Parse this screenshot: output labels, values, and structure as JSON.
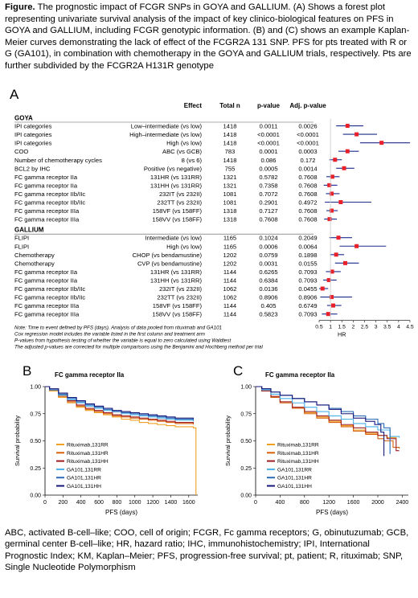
{
  "caption": {
    "label": "Figure.",
    "text": "The prognostic impact of FCGR SNPs in GOYA and GALLIUM. (A) Shows a forest plot representing univariate survival analysis of the impact of key clinico-biological features on PFS in GOYA and GALLIUM, including FCGR genotypic information. (B) and (C) shows an example Kaplan-Meier curves demonstrating the lack of effect of the FCGR2A 131 SNP. PFS for pts treated with R or G (GA101), in combination with chemotherapy in the GOYA and GALLIUM trials, respectively. Pts are further subdivided by the FCGR2A H131R genotype"
  },
  "chart_data": [
    {
      "type": "forest",
      "panel_label": "A",
      "columns": [
        "Effect",
        "Total n",
        "p-value",
        "Adj. p-value"
      ],
      "groups": [
        {
          "name": "GOYA",
          "rows": [
            {
              "label": "IPI categories",
              "effect": "Low–intermediate (vs low)",
              "n": "1418",
              "p": "0.0011",
              "adj_p": "0.0026",
              "hr": 1.75,
              "lo": 1.25,
              "hi": 2.45
            },
            {
              "label": "IPI categories",
              "effect": "High–intermediate (vs low)",
              "n": "1418",
              "p": "<0.0001",
              "adj_p": "<0.0001",
              "hr": 2.15,
              "lo": 1.55,
              "hi": 3.05
            },
            {
              "label": "IPI categories",
              "effect": "High (vs low)",
              "n": "1418",
              "p": "<0.0001",
              "adj_p": "<0.0001",
              "hr": 3.25,
              "lo": 2.3,
              "hi": 4.5
            },
            {
              "label": "COO",
              "effect": "ABC (vs GCB)",
              "n": "783",
              "p": "0.0001",
              "adj_p": "0.0003",
              "hr": 1.75,
              "lo": 1.35,
              "hi": 2.25
            },
            {
              "label": "Number of chemotherapy cycles",
              "effect": "8 (vs 6)",
              "n": "1418",
              "p": "0.086",
              "adj_p": "0.172",
              "hr": 1.2,
              "lo": 0.95,
              "hi": 1.5
            },
            {
              "label": "BCL2 by IHC",
              "effect": "Positive (vs negative)",
              "n": "755",
              "p": "0.0005",
              "adj_p": "0.0014",
              "hr": 1.6,
              "lo": 1.25,
              "hi": 2.05
            },
            {
              "label": "FC gamma receptor IIa",
              "effect": "131HR (vs 131RR)",
              "n": "1321",
              "p": "0.5782",
              "adj_p": "0.7608",
              "hr": 1.08,
              "lo": 0.82,
              "hi": 1.4
            },
            {
              "label": "FC gamma receptor IIa",
              "effect": "131HH (vs 131RR)",
              "n": "1321",
              "p": "0.7358",
              "adj_p": "0.7608",
              "hr": 0.95,
              "lo": 0.7,
              "hi": 1.3
            },
            {
              "label": "FC gamma receptor IIb/IIc",
              "effect": "232IT (vs 232II)",
              "n": "1081",
              "p": "0.7072",
              "adj_p": "0.7608",
              "hr": 1.05,
              "lo": 0.8,
              "hi": 1.4
            },
            {
              "label": "FC gamma receptor IIb/IIc",
              "effect": "232TT (vs 232II)",
              "n": "1081",
              "p": "0.2901",
              "adj_p": "0.4972",
              "hr": 1.45,
              "lo": 0.75,
              "hi": 2.8
            },
            {
              "label": "FC gamma receptor IIIa",
              "effect": "158VF (vs 158FF)",
              "n": "1318",
              "p": "0.7127",
              "adj_p": "0.7608",
              "hr": 1.05,
              "lo": 0.82,
              "hi": 1.32
            },
            {
              "label": "FC gamma receptor IIIa",
              "effect": "158VV (vs 158FF)",
              "n": "1318",
              "p": "0.7608",
              "adj_p": "0.7608",
              "hr": 0.96,
              "lo": 0.72,
              "hi": 1.28
            }
          ]
        },
        {
          "name": "GALLIUM",
          "rows": [
            {
              "label": "FLIPI",
              "effect": "Intermediate (vs low)",
              "n": "1165",
              "p": "0.1024",
              "adj_p": "0.2049",
              "hr": 1.35,
              "lo": 0.95,
              "hi": 1.95
            },
            {
              "label": "FLIPI",
              "effect": "High (vs low)",
              "n": "1165",
              "p": "0.0006",
              "adj_p": "0.0064",
              "hr": 2.15,
              "lo": 1.4,
              "hi": 3.45
            },
            {
              "label": "Chemotherapy",
              "effect": "CHOP (vs bendamustine)",
              "n": "1202",
              "p": "0.0759",
              "adj_p": "0.1898",
              "hr": 1.25,
              "lo": 0.98,
              "hi": 1.6
            },
            {
              "label": "Chemotherapy",
              "effect": "CVP (vs bendamustine)",
              "n": "1202",
              "p": "0.0031",
              "adj_p": "0.0155",
              "hr": 1.65,
              "lo": 1.2,
              "hi": 2.25
            },
            {
              "label": "FC gamma receptor IIa",
              "effect": "131HR (vs 131RR)",
              "n": "1144",
              "p": "0.6265",
              "adj_p": "0.7093",
              "hr": 1.07,
              "lo": 0.8,
              "hi": 1.45
            },
            {
              "label": "FC gamma receptor IIa",
              "effect": "131HH (vs 131RR)",
              "n": "1144",
              "p": "0.6384",
              "adj_p": "0.7093",
              "hr": 0.93,
              "lo": 0.68,
              "hi": 1.27
            },
            {
              "label": "FC gamma receptor IIb/IIc",
              "effect": "232IT (vs 232II)",
              "n": "1062",
              "p": "0.0136",
              "adj_p": "0.0455",
              "hr": 0.65,
              "lo": 0.47,
              "hi": 0.9
            },
            {
              "label": "FC gamma receptor IIb/IIc",
              "effect": "232TT (vs 232II)",
              "n": "1062",
              "p": "0.8906",
              "adj_p": "0.8906",
              "hr": 1.05,
              "lo": 0.55,
              "hi": 1.95
            },
            {
              "label": "FC gamma receptor IIIa",
              "effect": "158VF (vs 158FF)",
              "n": "1144",
              "p": "0.405",
              "adj_p": "0.6749",
              "hr": 1.12,
              "lo": 0.85,
              "hi": 1.48
            },
            {
              "label": "FC gamma receptor IIIa",
              "effect": "158VV (vs 158FF)",
              "n": "1144",
              "p": "0.5823",
              "adj_p": "0.7093",
              "hr": 0.9,
              "lo": 0.62,
              "hi": 1.3
            }
          ]
        }
      ],
      "xlabel": "HR",
      "xlim": [
        0.5,
        4.5
      ],
      "xticks": [
        0.5,
        1,
        1.5,
        2,
        2.5,
        3,
        3.5,
        4,
        4.5
      ],
      "reference_line": 1,
      "notes": [
        "Note: Time to event defined by PFS (days). Analysis of data pooled from rituximab and GA101",
        "Cox regression model includes the variable listed in the first column and treatment arm",
        "P-values from hypothesis testing of whether the variable is equal to zero calculated using Waldtest",
        "The adjusted p-values are corrected for multiple comparisons using the Benjamini and Hochberg method per trial"
      ],
      "colors": {
        "point": "#e8202a",
        "ci": "#1c2d8c",
        "ref": "#c8c8c8"
      }
    },
    {
      "type": "line",
      "panel_label": "B",
      "title": "FC gamma receptor IIa",
      "xlabel": "PFS (days)",
      "ylabel": "Survival probability",
      "xlim": [
        0,
        1700
      ],
      "ylim": [
        0.0,
        1.0
      ],
      "xticks": [
        0,
        200,
        400,
        600,
        800,
        1000,
        1200,
        1400,
        1600
      ],
      "yticks": [
        "0.00",
        "0.25",
        "0.50",
        "0.75",
        "1.00"
      ],
      "series": [
        {
          "name": "Rituximab,131RR",
          "color": "#f0a020",
          "x": [
            0,
            50,
            150,
            250,
            350,
            450,
            550,
            650,
            750,
            850,
            950,
            1050,
            1150,
            1250,
            1350,
            1450,
            1550,
            1650,
            1680
          ],
          "y": [
            1.0,
            0.96,
            0.9,
            0.85,
            0.81,
            0.78,
            0.76,
            0.74,
            0.72,
            0.7,
            0.69,
            0.67,
            0.66,
            0.65,
            0.64,
            0.63,
            0.63,
            0.62,
            0.0
          ]
        },
        {
          "name": "Rituximab,131HR",
          "color": "#d8600a",
          "x": [
            0,
            50,
            150,
            250,
            350,
            450,
            550,
            650,
            750,
            850,
            950,
            1050,
            1150,
            1250,
            1350,
            1450,
            1550,
            1650
          ],
          "y": [
            1.0,
            0.97,
            0.91,
            0.86,
            0.82,
            0.79,
            0.77,
            0.75,
            0.73,
            0.72,
            0.71,
            0.7,
            0.69,
            0.68,
            0.67,
            0.66,
            0.66,
            0.65
          ]
        },
        {
          "name": "Rituximab,131HH",
          "color": "#9c1c22",
          "x": [
            0,
            50,
            150,
            250,
            350,
            450,
            550,
            650,
            750,
            850,
            950,
            1050,
            1150,
            1250,
            1350,
            1450,
            1550,
            1650
          ],
          "y": [
            1.0,
            0.97,
            0.92,
            0.87,
            0.83,
            0.8,
            0.78,
            0.76,
            0.74,
            0.73,
            0.72,
            0.71,
            0.7,
            0.69,
            0.68,
            0.67,
            0.67,
            0.66
          ]
        },
        {
          "name": "GA101,131RR",
          "color": "#4ab0e8",
          "x": [
            0,
            50,
            150,
            250,
            350,
            450,
            550,
            650,
            750,
            850,
            950,
            1050,
            1150,
            1250,
            1350,
            1450,
            1550,
            1650
          ],
          "y": [
            1.0,
            0.97,
            0.92,
            0.88,
            0.85,
            0.82,
            0.8,
            0.78,
            0.77,
            0.75,
            0.74,
            0.73,
            0.72,
            0.71,
            0.7,
            0.69,
            0.69,
            0.68
          ]
        },
        {
          "name": "GA101,131HR",
          "color": "#2a6cb8",
          "x": [
            0,
            50,
            150,
            250,
            350,
            450,
            550,
            650,
            750,
            850,
            950,
            1050,
            1150,
            1250,
            1350,
            1450,
            1550,
            1650
          ],
          "y": [
            1.0,
            0.97,
            0.93,
            0.89,
            0.86,
            0.83,
            0.81,
            0.79,
            0.77,
            0.76,
            0.75,
            0.74,
            0.73,
            0.72,
            0.71,
            0.7,
            0.7,
            0.69
          ]
        },
        {
          "name": "GA101,131HH",
          "color": "#14167a",
          "x": [
            0,
            50,
            150,
            250,
            350,
            450,
            550,
            650,
            750,
            850,
            950,
            1050,
            1150,
            1250,
            1350,
            1450,
            1550,
            1650
          ],
          "y": [
            1.0,
            0.98,
            0.94,
            0.9,
            0.87,
            0.84,
            0.82,
            0.8,
            0.78,
            0.77,
            0.76,
            0.75,
            0.74,
            0.73,
            0.72,
            0.71,
            0.71,
            0.7
          ]
        }
      ]
    },
    {
      "type": "line",
      "panel_label": "C",
      "title": "FC gamma receptor IIa",
      "xlabel": "PFS (days)",
      "ylabel": "Survival probability",
      "xlim": [
        0,
        2500
      ],
      "ylim": [
        0.0,
        1.0
      ],
      "xticks": [
        0,
        400,
        800,
        1200,
        1600,
        2000,
        2400
      ],
      "yticks": [
        "0.00",
        "0.25",
        "0.50",
        "0.75",
        "1.00"
      ],
      "series": [
        {
          "name": "Rituximab,131RR",
          "color": "#f0a020",
          "x": [
            0,
            100,
            250,
            400,
            600,
            800,
            1000,
            1200,
            1400,
            1600,
            1800,
            2000,
            2150,
            2300
          ],
          "y": [
            1.0,
            0.96,
            0.91,
            0.86,
            0.81,
            0.76,
            0.72,
            0.68,
            0.64,
            0.6,
            0.57,
            0.55,
            0.53,
            0.52
          ]
        },
        {
          "name": "Rituximab,131HR",
          "color": "#d8600a",
          "x": [
            0,
            100,
            250,
            400,
            600,
            800,
            1000,
            1200,
            1400,
            1600,
            1800,
            2000,
            2100,
            2250,
            2350
          ],
          "y": [
            1.0,
            0.96,
            0.9,
            0.85,
            0.8,
            0.75,
            0.71,
            0.67,
            0.63,
            0.59,
            0.56,
            0.52,
            0.5,
            0.44,
            0.43
          ]
        },
        {
          "name": "Rituximab,131HH",
          "color": "#9c1c22",
          "x": [
            0,
            100,
            250,
            400,
            600,
            800,
            1000,
            1200,
            1400,
            1600,
            1800,
            2000,
            2150,
            2300,
            2350
          ],
          "y": [
            1.0,
            0.96,
            0.91,
            0.86,
            0.81,
            0.77,
            0.73,
            0.69,
            0.65,
            0.62,
            0.58,
            0.55,
            0.52,
            0.41,
            0.41
          ]
        },
        {
          "name": "GA101,131RR",
          "color": "#4ab0e8",
          "x": [
            0,
            100,
            250,
            400,
            600,
            800,
            1000,
            1200,
            1400,
            1600,
            1800,
            2000,
            2200,
            2350
          ],
          "y": [
            1.0,
            0.97,
            0.93,
            0.89,
            0.85,
            0.81,
            0.77,
            0.73,
            0.7,
            0.66,
            0.63,
            0.6,
            0.54,
            0.53
          ]
        },
        {
          "name": "GA101,131HR",
          "color": "#2a6cb8",
          "x": [
            0,
            100,
            250,
            400,
            600,
            800,
            1000,
            1200,
            1400,
            1600,
            1800,
            2000,
            2100,
            2200
          ],
          "y": [
            1.0,
            0.98,
            0.95,
            0.92,
            0.89,
            0.86,
            0.83,
            0.8,
            0.77,
            0.73,
            0.7,
            0.66,
            0.62,
            0.38
          ]
        },
        {
          "name": "GA101,131HH",
          "color": "#14167a",
          "x": [
            0,
            100,
            250,
            400,
            600,
            800,
            1000,
            1200,
            1400,
            1600,
            1800,
            1950,
            2050,
            2100
          ],
          "y": [
            1.0,
            0.98,
            0.95,
            0.92,
            0.89,
            0.86,
            0.83,
            0.79,
            0.75,
            0.71,
            0.68,
            0.65,
            0.58,
            0.36
          ]
        }
      ]
    }
  ],
  "footer": "ABC, activated B-cell–like; COO, cell of origin; FCGR, Fc gamma receptors; G, obinutuzumab; GCB, germinal center B-cell–like; HR, hazard ratio; IHC, immunohistochemistry; IPI, International Prognostic Index; KM, Kaplan–Meier; PFS, progression-free survival; pt, patient; R, rituximab; SNP, Single Nucleotide Polymorphism"
}
